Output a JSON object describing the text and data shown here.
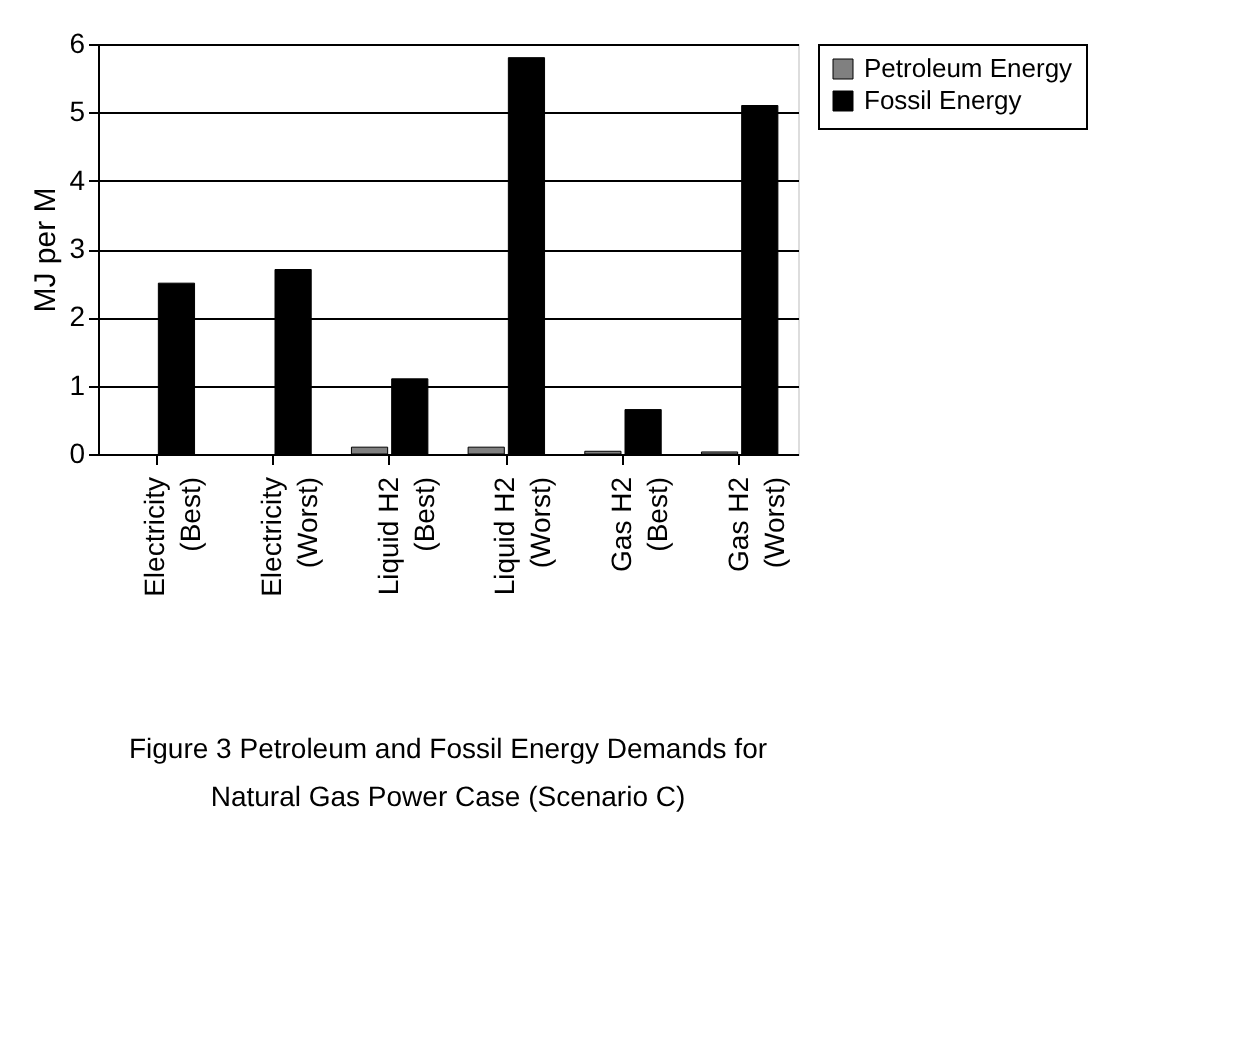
{
  "chart_data": {
    "type": "bar",
    "title": "Figure 3  Petroleum and Fossil Energy Demands for Natural Gas Power Case (Scenario C)",
    "ylabel": "MJ per M",
    "categories": [
      "Electricity (Best)",
      "Electricity (Worst)",
      "Liquid H2 (Best)",
      "Liquid H2 (Worst)",
      "Gas H2 (Best)",
      "Gas H2 (Worst)"
    ],
    "series": [
      {
        "name": "Petroleum Energy",
        "color": "#808080",
        "values": [
          null,
          null,
          0.1,
          0.1,
          0.04,
          0.03
        ]
      },
      {
        "name": "Fossil Energy",
        "color": "#000000",
        "values": [
          2.5,
          2.7,
          1.1,
          5.8,
          0.65,
          5.1
        ]
      }
    ],
    "ylim": [
      0,
      6
    ],
    "yticks": [
      0,
      1,
      2,
      3,
      4,
      5,
      6
    ],
    "grid": "y",
    "legend": "right"
  }
}
